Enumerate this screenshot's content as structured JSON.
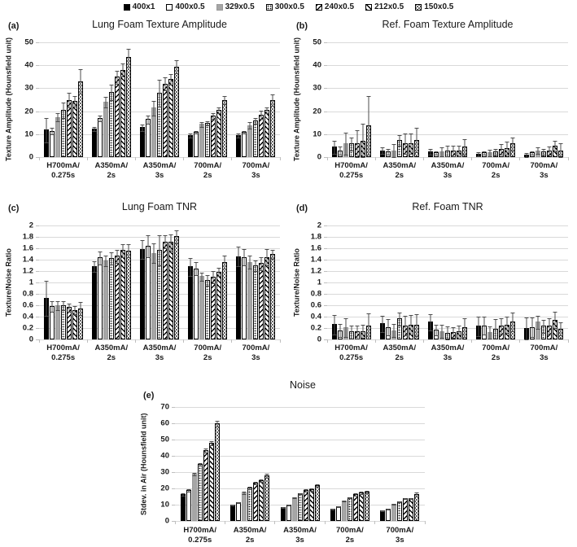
{
  "legend": {
    "items": [
      {
        "label": "400x1",
        "pattern": "solid-black"
      },
      {
        "label": "400x0.5",
        "pattern": "white"
      },
      {
        "label": "329x0.5",
        "pattern": "gray"
      },
      {
        "label": "300x0.5",
        "pattern": "dots"
      },
      {
        "label": "240x0.5",
        "pattern": "diag-down"
      },
      {
        "label": "212x0.5",
        "pattern": "diag-up"
      },
      {
        "label": "150x0.5",
        "pattern": "diag-dots"
      }
    ]
  },
  "chart_data": [
    {
      "type": "bar",
      "letter": "(a)",
      "title": "Lung Foam Texture Amplitude",
      "ylabel": "Texture Amplitude (Hounsfield unit)",
      "ylim": [
        0,
        50
      ],
      "ystep": 10,
      "grid": true,
      "legend_position": "top-shared",
      "categories": [
        {
          "l1": "H700mA/",
          "l2": "0.275s"
        },
        {
          "l1": "A350mA/",
          "l2": "2s"
        },
        {
          "l1": "A350mA/",
          "l2": "3s"
        },
        {
          "l1": "700mA/",
          "l2": "2s"
        },
        {
          "l1": "700mA/",
          "l2": "3s"
        }
      ],
      "series": [
        {
          "name": "400x1",
          "values": [
            12,
            12.5,
            13,
            9.5,
            9.5
          ],
          "errors": [
            5.5,
            1,
            1.5,
            1,
            1
          ]
        },
        {
          "name": "400x0.5",
          "values": [
            11.5,
            17,
            16.5,
            11,
            11
          ],
          "errors": [
            1.5,
            1.5,
            2,
            0.7,
            0.7
          ]
        },
        {
          "name": "329x0.5",
          "values": [
            17.5,
            24,
            21.5,
            14.5,
            14
          ],
          "errors": [
            2,
            2.5,
            3.5,
            1.2,
            1.5
          ]
        },
        {
          "name": "300x0.5",
          "values": [
            20.5,
            28.5,
            28,
            15,
            16
          ],
          "errors": [
            3.5,
            3.5,
            6,
            1,
            1.5
          ]
        },
        {
          "name": "240x0.5",
          "values": [
            25,
            35,
            32,
            18,
            18.5
          ],
          "errors": [
            3.5,
            3,
            3,
            1.5,
            2
          ]
        },
        {
          "name": "212x0.5",
          "values": [
            24.5,
            38,
            34,
            20.5,
            20.5
          ],
          "errors": [
            2.5,
            3,
            2.5,
            1.5,
            1.5
          ]
        },
        {
          "name": "150x0.5",
          "values": [
            33,
            43.5,
            39.5,
            25,
            25
          ],
          "errors": [
            5.5,
            4,
            3,
            2,
            2.5
          ]
        }
      ]
    },
    {
      "type": "bar",
      "letter": "(b)",
      "title": "Ref. Foam Texture Amplitude",
      "ylabel": "Texture Amplitude (Hounsfield unit)",
      "ylim": [
        0,
        50
      ],
      "ystep": 10,
      "grid": true,
      "legend_position": "top-shared",
      "categories": [
        {
          "l1": "H700mA/",
          "l2": "0.275s"
        },
        {
          "l1": "A350mA/",
          "l2": "2s"
        },
        {
          "l1": "A350mA/",
          "l2": "3s"
        },
        {
          "l1": "700mA/",
          "l2": "2s"
        },
        {
          "l1": "700mA/",
          "l2": "3s"
        }
      ],
      "series": [
        {
          "name": "400x1",
          "values": [
            4.5,
            3,
            2.5,
            1.5,
            1
          ],
          "errors": [
            3,
            1.5,
            1.5,
            1,
            1
          ]
        },
        {
          "name": "400x0.5",
          "values": [
            3,
            2.5,
            2,
            2,
            2
          ],
          "errors": [
            2,
            1.5,
            1,
            1,
            1
          ]
        },
        {
          "name": "329x0.5",
          "values": [
            6,
            3,
            2.5,
            2,
            3
          ],
          "errors": [
            5,
            3,
            2,
            1.5,
            1.5
          ]
        },
        {
          "name": "300x0.5",
          "values": [
            6,
            7.5,
            3,
            2.5,
            2.5
          ],
          "errors": [
            3,
            2.5,
            2.5,
            1.5,
            1.5
          ]
        },
        {
          "name": "240x0.5",
          "values": [
            6,
            6,
            3,
            3.5,
            3
          ],
          "errors": [
            6,
            4.5,
            2.5,
            2.5,
            2
          ]
        },
        {
          "name": "212x0.5",
          "values": [
            7,
            6,
            3,
            4,
            5
          ],
          "errors": [
            8,
            4.5,
            2.5,
            3,
            2.5
          ]
        },
        {
          "name": "150x0.5",
          "values": [
            14,
            7.5,
            4.5,
            6,
            3
          ],
          "errors": [
            13,
            5.5,
            3.5,
            3,
            3.5
          ]
        }
      ]
    },
    {
      "type": "bar",
      "letter": "(c)",
      "title": "Lung Foam TNR",
      "ylabel": "Texture/Noise Ratio",
      "ylim": [
        0,
        2
      ],
      "ystep": 0.2,
      "grid": true,
      "legend_position": "top-shared",
      "categories": [
        {
          "l1": "H700mA/",
          "l2": "0.275s"
        },
        {
          "l1": "A350mA/",
          "l2": "2s"
        },
        {
          "l1": "A350mA/",
          "l2": "3s"
        },
        {
          "l1": "700mA/",
          "l2": "2s"
        },
        {
          "l1": "700mA/",
          "l2": "3s"
        }
      ],
      "series": [
        {
          "name": "400x1",
          "values": [
            0.73,
            1.28,
            1.59,
            1.28,
            1.46
          ],
          "errors": [
            0.32,
            0.1,
            0.17,
            0.16,
            0.18
          ]
        },
        {
          "name": "400x0.5",
          "values": [
            0.58,
            1.44,
            1.64,
            1.25,
            1.45
          ],
          "errors": [
            0.1,
            0.12,
            0.2,
            0.12,
            0.15
          ]
        },
        {
          "name": "329x0.5",
          "values": [
            0.6,
            1.39,
            1.52,
            1.11,
            1.36
          ],
          "errors": [
            0.08,
            0.1,
            0.18,
            0.08,
            0.12
          ]
        },
        {
          "name": "300x0.5",
          "values": [
            0.6,
            1.43,
            1.57,
            1.05,
            1.3
          ],
          "errors": [
            0.08,
            0.12,
            0.27,
            0.1,
            0.1
          ]
        },
        {
          "name": "240x0.5",
          "values": [
            0.57,
            1.47,
            1.72,
            1.1,
            1.34
          ],
          "errors": [
            0.08,
            0.12,
            0.12,
            0.12,
            0.12
          ]
        },
        {
          "name": "212x0.5",
          "values": [
            0.52,
            1.57,
            1.71,
            1.19,
            1.45
          ],
          "errors": [
            0.08,
            0.12,
            0.15,
            0.08,
            0.15
          ]
        },
        {
          "name": "150x0.5",
          "values": [
            0.55,
            1.56,
            1.81,
            1.36,
            1.5
          ],
          "errors": [
            0.12,
            0.12,
            0.12,
            0.12,
            0.08
          ]
        }
      ]
    },
    {
      "type": "bar",
      "letter": "(d)",
      "title": "Ref. Foam TNR",
      "ylabel": "Texture/Noise Ratio",
      "ylim": [
        0,
        2
      ],
      "ystep": 0.2,
      "grid": true,
      "legend_position": "top-shared",
      "categories": [
        {
          "l1": "H700mA/",
          "l2": "0.275s"
        },
        {
          "l1": "A350mA/",
          "l2": "2s"
        },
        {
          "l1": "A350mA/",
          "l2": "3s"
        },
        {
          "l1": "700mA/",
          "l2": "2s"
        },
        {
          "l1": "700mA/",
          "l2": "3s"
        }
      ],
      "series": [
        {
          "name": "400x1",
          "values": [
            0.27,
            0.28,
            0.31,
            0.24,
            0.2
          ],
          "errors": [
            0.18,
            0.15,
            0.15,
            0.18,
            0.2
          ]
        },
        {
          "name": "400x0.5",
          "values": [
            0.16,
            0.22,
            0.17,
            0.25,
            0.22
          ],
          "errors": [
            0.12,
            0.15,
            0.1,
            0.17,
            0.18
          ]
        },
        {
          "name": "329x0.5",
          "values": [
            0.21,
            0.16,
            0.15,
            0.13,
            0.31
          ],
          "errors": [
            0.17,
            0.12,
            0.12,
            0.12,
            0.12
          ]
        },
        {
          "name": "300x0.5",
          "values": [
            0.14,
            0.37,
            0.12,
            0.19,
            0.24
          ],
          "errors": [
            0.12,
            0.12,
            0.12,
            0.18,
            0.12
          ]
        },
        {
          "name": "240x0.5",
          "values": [
            0.14,
            0.25,
            0.13,
            0.24,
            0.24
          ],
          "errors": [
            0.12,
            0.18,
            0.1,
            0.14,
            0.14
          ]
        },
        {
          "name": "212x0.5",
          "values": [
            0.15,
            0.26,
            0.14,
            0.26,
            0.35
          ],
          "errors": [
            0.12,
            0.18,
            0.12,
            0.15,
            0.15
          ]
        },
        {
          "name": "150x0.5",
          "values": [
            0.24,
            0.26,
            0.21,
            0.32,
            0.19
          ],
          "errors": [
            0.23,
            0.2,
            0.17,
            0.17,
            0.12
          ]
        }
      ]
    },
    {
      "type": "bar",
      "letter": "(e)",
      "title": "Noise",
      "ylabel": "Stdev. in Air (Hounsfield unit)",
      "ylim": [
        0,
        70
      ],
      "ystep": 10,
      "grid": true,
      "legend_position": "top-shared",
      "categories": [
        {
          "l1": "H700mA/",
          "l2": "0.275s"
        },
        {
          "l1": "A350mA/",
          "l2": "2s"
        },
        {
          "l1": "A350mA/",
          "l2": "3s"
        },
        {
          "l1": "700mA/",
          "l2": "2s"
        },
        {
          "l1": "700mA/",
          "l2": "3s"
        }
      ],
      "series": [
        {
          "name": "400x1",
          "values": [
            16.5,
            10,
            8.5,
            7.5,
            6.5
          ],
          "errors": [
            1,
            0.7,
            0.6,
            0.5,
            0.5
          ]
        },
        {
          "name": "400x0.5",
          "values": [
            19,
            11.5,
            10,
            9,
            7.5
          ],
          "errors": [
            1,
            0.7,
            0.6,
            0.5,
            0.5
          ]
        },
        {
          "name": "329x0.5",
          "values": [
            29,
            17.5,
            14.5,
            12.5,
            10.5
          ],
          "errors": [
            1.2,
            0.8,
            0.7,
            0.6,
            0.5
          ]
        },
        {
          "name": "300x0.5",
          "values": [
            35,
            20.5,
            17,
            14.5,
            12
          ],
          "errors": [
            1,
            0.8,
            0.7,
            0.6,
            0.5
          ]
        },
        {
          "name": "240x0.5",
          "values": [
            43.5,
            23.5,
            19,
            16.5,
            14
          ],
          "errors": [
            1.5,
            1,
            0.8,
            0.8,
            0.6
          ]
        },
        {
          "name": "212x0.5",
          "values": [
            48,
            25,
            19.5,
            17.5,
            14
          ],
          "errors": [
            1.5,
            1,
            0.8,
            0.8,
            0.6
          ]
        },
        {
          "name": "150x0.5",
          "values": [
            60,
            28,
            22,
            18,
            16.5
          ],
          "errors": [
            2,
            1.5,
            1,
            1,
            1.5
          ]
        }
      ]
    }
  ]
}
